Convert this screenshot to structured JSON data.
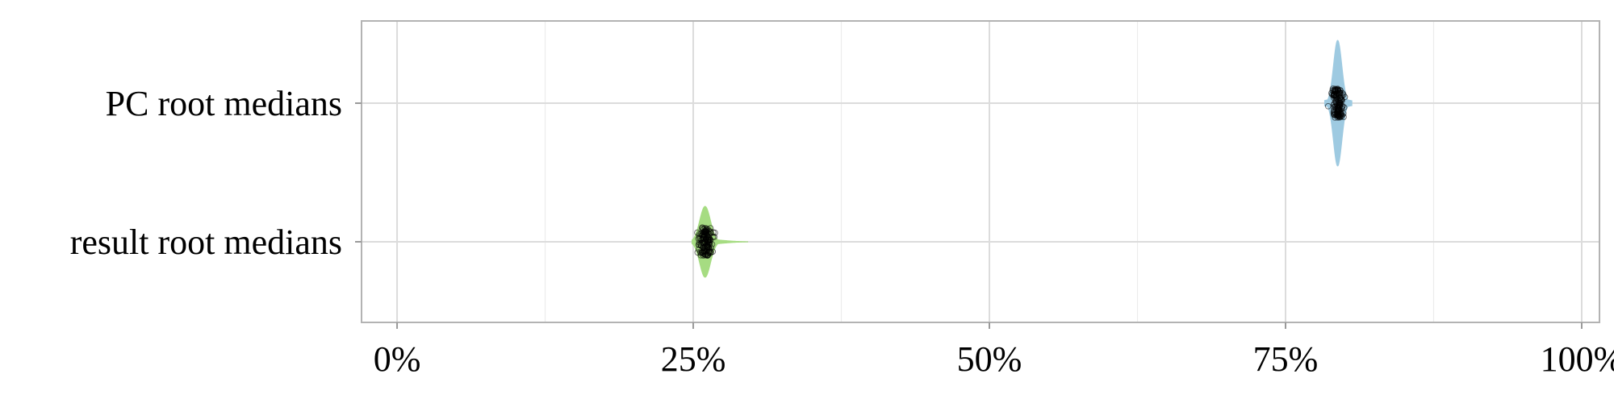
{
  "chart_data": {
    "type": "violin",
    "orientation": "horizontal",
    "categories": [
      "PC root medians",
      "result root medians"
    ],
    "x_ticks": [
      "0%",
      "25%",
      "50%",
      "75%",
      "100%"
    ],
    "x_tick_values": [
      0,
      25,
      50,
      75,
      100
    ],
    "xlim": [
      -3,
      101.5
    ],
    "grid": true,
    "series": [
      {
        "category": "PC root medians",
        "color": "#9ecae1",
        "center": 79.4,
        "spread_sd": 0.35,
        "min": 78.3,
        "max": 80.6
      },
      {
        "category": "result root medians",
        "color": "#a6dc82",
        "center": 26.0,
        "spread_sd": 0.45,
        "min": 24.9,
        "max": 29.6
      }
    ]
  }
}
